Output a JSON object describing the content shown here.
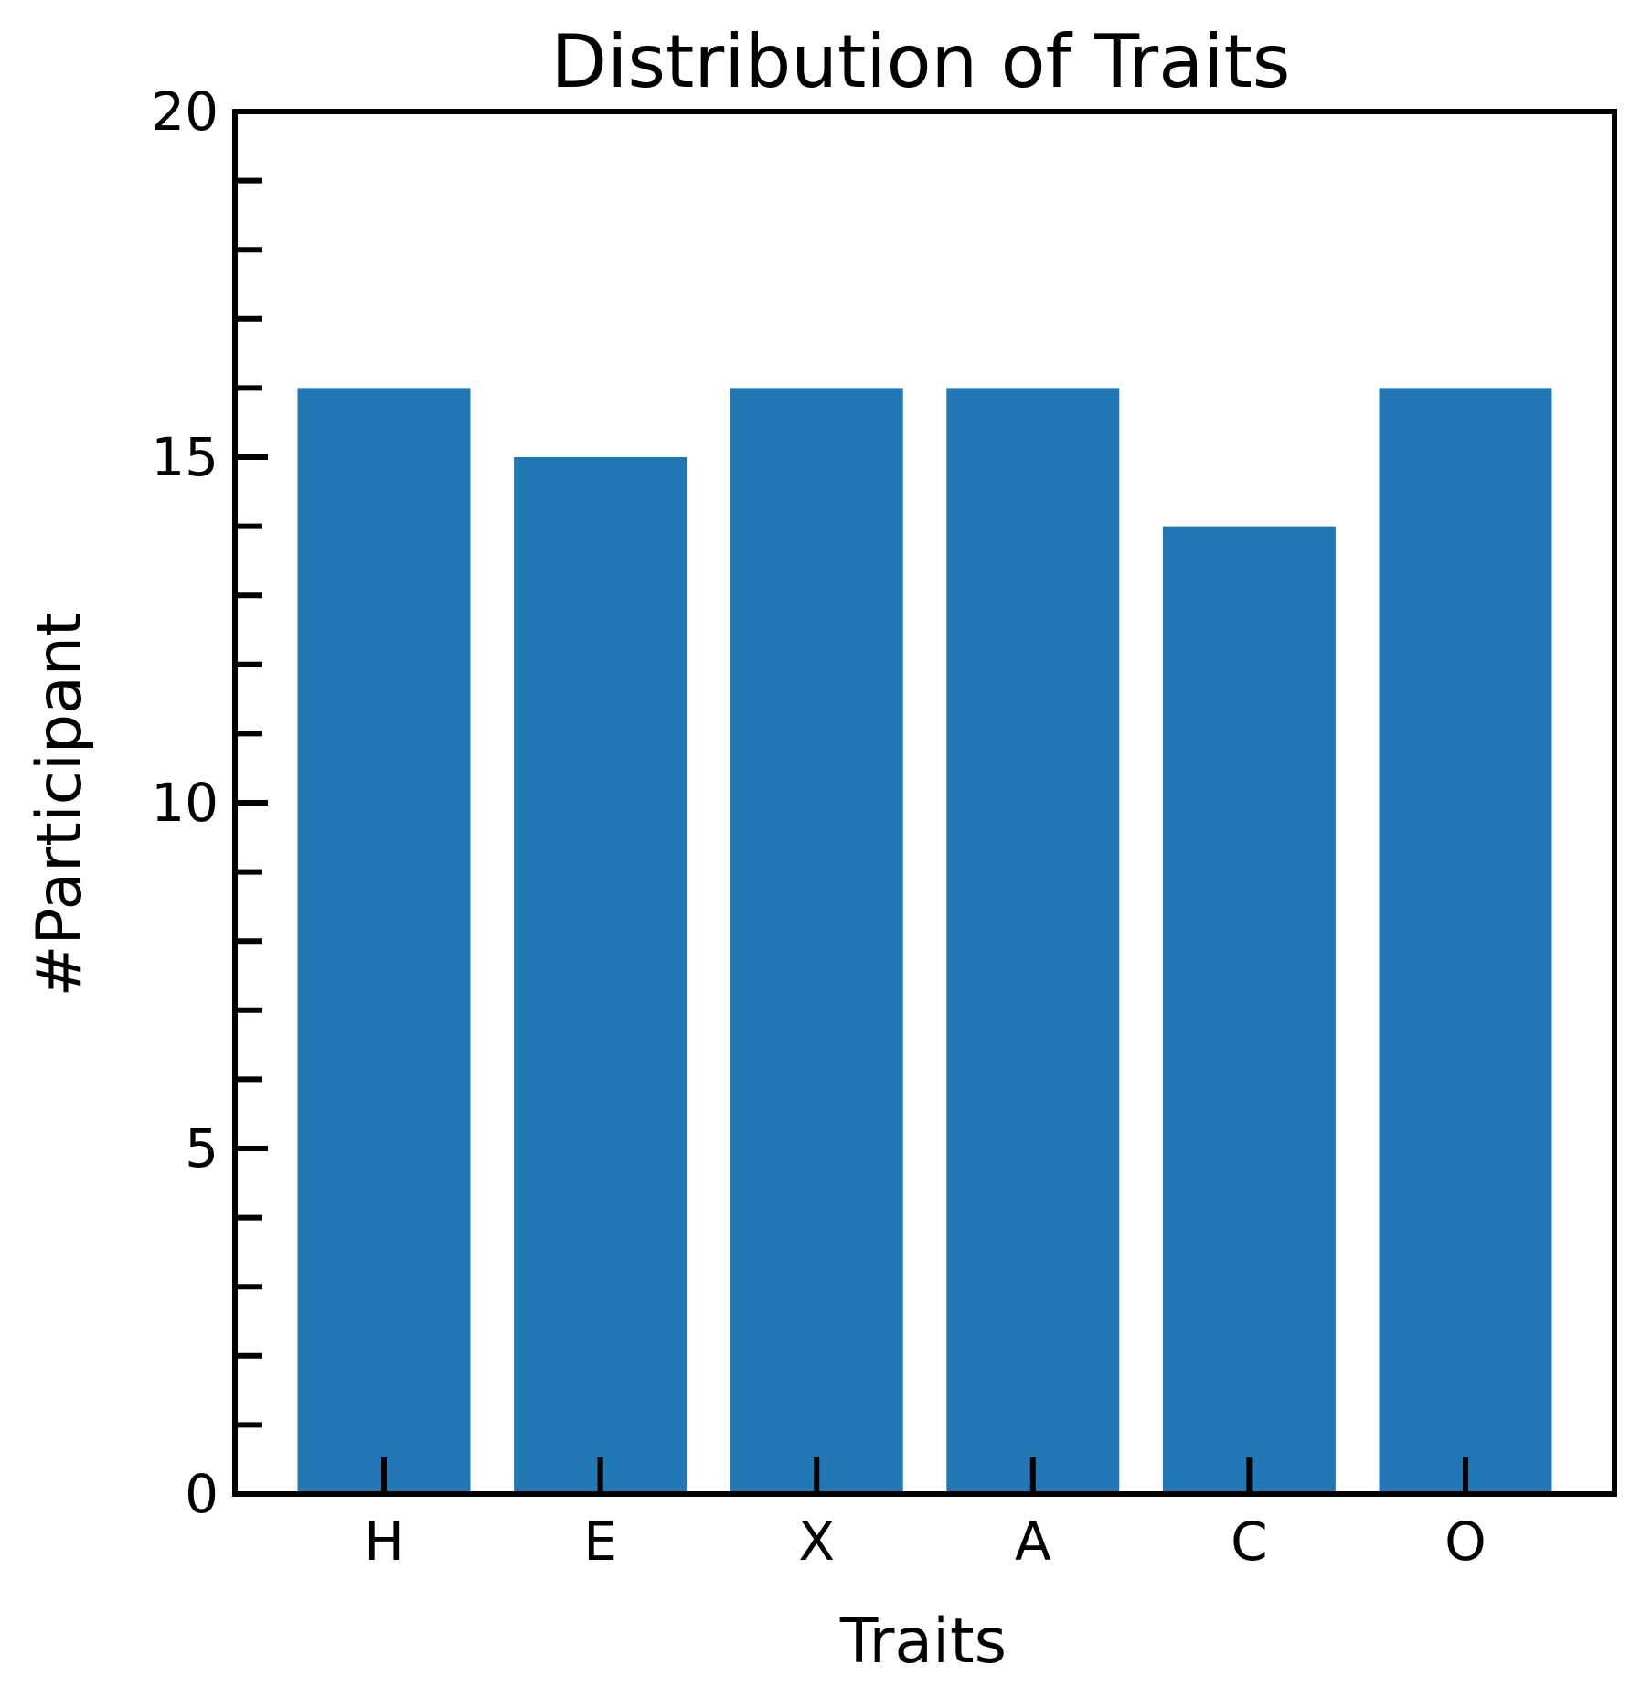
{
  "chart_data": {
    "type": "bar",
    "title": "Distribution of Traits",
    "xlabel": "Traits",
    "ylabel": "#Participant",
    "categories": [
      "H",
      "E",
      "X",
      "A",
      "C",
      "O"
    ],
    "values": [
      16,
      15,
      16,
      16,
      14,
      16
    ],
    "ylim": [
      0,
      20
    ],
    "yticks_major": [
      0,
      5,
      10,
      15,
      20
    ],
    "yticks_major_labels": [
      "0",
      "5",
      "10",
      "15",
      "20"
    ],
    "yticks_minor_step": 1,
    "grid": false,
    "legend": "none",
    "bar_color": "#2077b4",
    "axis_color": "#000000"
  }
}
